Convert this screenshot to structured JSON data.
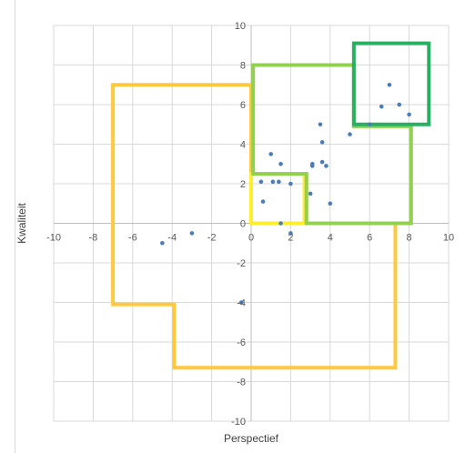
{
  "chart_data": {
    "type": "scatter",
    "xlabel": "Perspectief",
    "ylabel": "Kwaliteit",
    "xlim": [
      -10,
      10
    ],
    "ylim": [
      -10,
      10
    ],
    "x_ticks": [
      "-10",
      "-8",
      "-6",
      "-4",
      "-2",
      "0",
      "2",
      "4",
      "6",
      "8",
      "10"
    ],
    "y_ticks": [
      "-10",
      "-8",
      "-6",
      "-4",
      "-2",
      "0",
      "2",
      "4",
      "6",
      "8",
      "10"
    ],
    "grid": true,
    "legend": "none",
    "series": [
      {
        "color": "#4a7ebb",
        "points": [
          {
            "x": -4.5,
            "y": -1.0
          },
          {
            "x": -3.0,
            "y": -0.5
          },
          {
            "x": -0.5,
            "y": -4.0
          },
          {
            "x": 0.5,
            "y": 2.1
          },
          {
            "x": 0.6,
            "y": 1.1
          },
          {
            "x": 1.0,
            "y": 3.5
          },
          {
            "x": 1.1,
            "y": 2.1
          },
          {
            "x": 1.4,
            "y": 2.1
          },
          {
            "x": 1.5,
            "y": 3.0
          },
          {
            "x": 1.5,
            "y": 0.0
          },
          {
            "x": 2.0,
            "y": 2.0
          },
          {
            "x": 2.0,
            "y": -0.5
          },
          {
            "x": 3.0,
            "y": 1.5
          },
          {
            "x": 3.1,
            "y": 3.0
          },
          {
            "x": 3.1,
            "y": 2.9
          },
          {
            "x": 3.5,
            "y": 5.0
          },
          {
            "x": 3.6,
            "y": 4.1
          },
          {
            "x": 3.6,
            "y": 3.1
          },
          {
            "x": 3.8,
            "y": 2.9
          },
          {
            "x": 4.0,
            "y": 1.0
          },
          {
            "x": 5.0,
            "y": 4.5
          },
          {
            "x": 6.0,
            "y": 5.0
          },
          {
            "x": 6.6,
            "y": 5.9
          },
          {
            "x": 7.0,
            "y": 7.0
          },
          {
            "x": 7.5,
            "y": 6.0
          },
          {
            "x": 8.0,
            "y": 5.5
          }
        ]
      }
    ],
    "regions": [
      {
        "color": "#ffc83d",
        "points": [
          [
            -7,
            7
          ],
          [
            0,
            7
          ],
          [
            0,
            0
          ],
          [
            7.3,
            0
          ],
          [
            7.3,
            -7.3
          ],
          [
            -3.9,
            -7.3
          ],
          [
            -3.9,
            -4.1
          ],
          [
            -7,
            -4.1
          ]
        ]
      },
      {
        "color": "#ffee2e",
        "points": [
          [
            0,
            0
          ],
          [
            2.7,
            0
          ],
          [
            2.7,
            2.5
          ],
          [
            0,
            2.5
          ]
        ]
      },
      {
        "color": "#92d050",
        "points": [
          [
            0.1,
            8
          ],
          [
            5.2,
            8
          ],
          [
            5.2,
            4.9
          ],
          [
            8.1,
            4.9
          ],
          [
            8.1,
            0
          ],
          [
            2.8,
            0
          ],
          [
            2.8,
            2.5
          ],
          [
            0.1,
            2.5
          ]
        ]
      },
      {
        "color": "#27b061",
        "points": [
          [
            5.2,
            9.1
          ],
          [
            9.0,
            9.1
          ],
          [
            9.0,
            5.0
          ],
          [
            5.2,
            5.0
          ]
        ]
      }
    ]
  }
}
